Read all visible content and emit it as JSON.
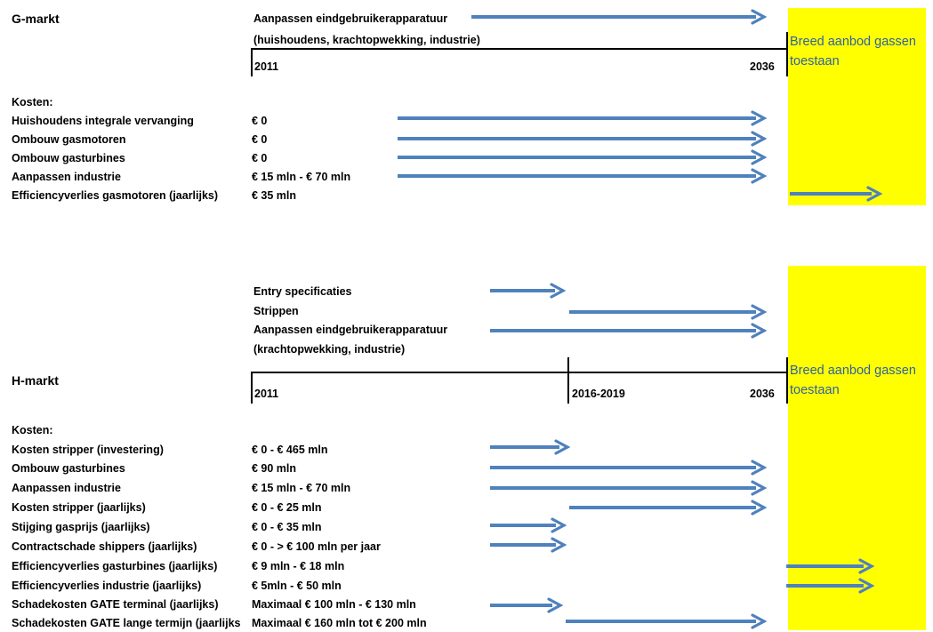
{
  "g_market": {
    "title": "G-markt",
    "measure_line1": "Aanpassen eindgebruikerapparatuur",
    "measure_line2": "(huishoudens, krachtopwekking, industrie)",
    "year_start": "2011",
    "year_end": "2036",
    "yellow_label_line1": "Breed aanbod gassen",
    "yellow_label_line2": "toestaan",
    "costs_heading": "Kosten:",
    "costs": [
      {
        "label": "Huishoudens integrale vervanging",
        "value": "€ 0"
      },
      {
        "label": "Ombouw gasmotoren",
        "value": "€ 0"
      },
      {
        "label": "Ombouw gasturbines",
        "value": "€ 0"
      },
      {
        "label": "Aanpassen industrie",
        "value": "€ 15 mln - € 70 mln"
      },
      {
        "label": "Efficiencyverlies gasmotoren (jaarlijks)",
        "value": "€ 35 mln"
      }
    ]
  },
  "h_market": {
    "title": "H-markt",
    "measures": [
      "Entry specificaties",
      "Strippen",
      "Aanpassen eindgebruikerapparatuur",
      "(krachtopwekking, industrie)"
    ],
    "year_start": "2011",
    "year_mid": "2016-2019",
    "year_end": "2036",
    "yellow_label_line1": "Breed aanbod gassen",
    "yellow_label_line2": "toestaan",
    "costs_heading": "Kosten:",
    "costs": [
      {
        "label": "Kosten stripper (investering)",
        "value": "€ 0 - € 465 mln"
      },
      {
        "label": "Ombouw gasturbines",
        "value": " € 90 mln"
      },
      {
        "label": "Aanpassen industrie",
        "value": "€ 15 mln - € 70 mln"
      },
      {
        "label": "Kosten stripper (jaarlijks)",
        "value": "€ 0 - € 25 mln"
      },
      {
        "label": "Stijging gasprijs (jaarlijks)",
        "value": "€ 0 - € 35 mln"
      },
      {
        "label": "Contractschade shippers (jaarlijks)",
        "value": "€ 0 -  > € 100 mln per jaar"
      },
      {
        "label": "Efficiencyverlies gasturbines (jaarlijks)",
        "value": "€ 9 mln - € 18 mln"
      },
      {
        "label": "Efficiencyverlies industrie (jaarlijks)",
        "value": "€ 5mln - € 50 mln"
      },
      {
        "label": "Schadekosten GATE terminal (jaarlijks)",
        "value": "Maximaal € 100 mln - € 130 mln"
      },
      {
        "label": "Schadekosten GATE lange termijn (jaarlijks",
        "value": "Maximaal € 160 mln tot € 200 mln"
      }
    ]
  },
  "colors": {
    "arrow": "#4f81bd",
    "highlight": "#ffff00",
    "highlight_text": "#2f61a4"
  }
}
